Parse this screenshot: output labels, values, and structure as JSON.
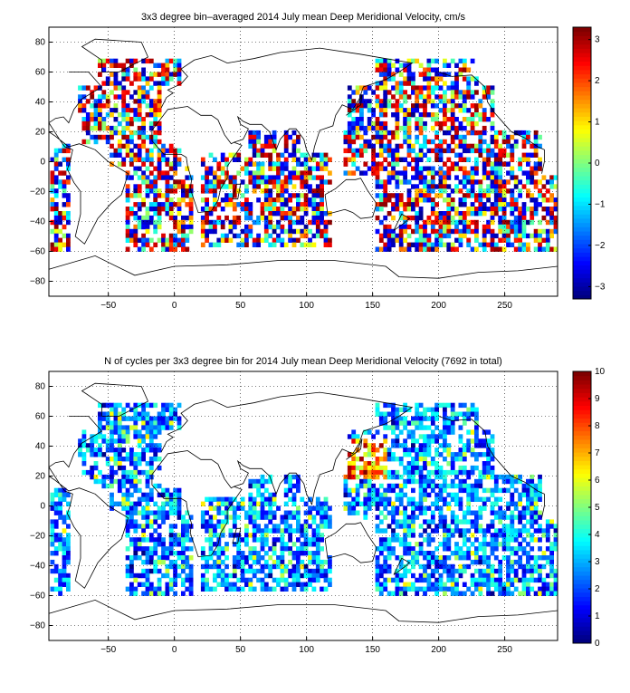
{
  "figures": [
    {
      "title": "3x3 degree bin–averaged 2014 July mean Deep Meridional Velocity, cm/s",
      "colorbar": {
        "ticks": [
          "3",
          "2",
          "1",
          "0",
          "−1",
          "−2",
          "−3"
        ],
        "min": -3.3,
        "max": 3.3,
        "colormap": "jet"
      }
    },
    {
      "title": "N of cycles per 3x3 degree bin for 2014 July mean Deep Meridional Velocity (7692 in total)",
      "colorbar": {
        "ticks": [
          "10",
          "9",
          "8",
          "7",
          "6",
          "5",
          "4",
          "3",
          "2",
          "1",
          "0"
        ],
        "min": 0,
        "max": 10,
        "colormap": "jet"
      }
    }
  ],
  "axes": {
    "x_ticks": [
      "−50",
      "0",
      "50",
      "100",
      "150",
      "200",
      "250"
    ],
    "y_ticks": [
      "80",
      "60",
      "40",
      "20",
      "0",
      "−20",
      "−40",
      "−60",
      "−80"
    ],
    "xlim": [
      -95,
      290
    ],
    "ylim": [
      -90,
      90
    ],
    "grid": "dotted"
  },
  "colors": {
    "colormap_stops": [
      "#00008f",
      "#0000ff",
      "#00ffff",
      "#ffff00",
      "#ff0000",
      "#800000"
    ]
  }
}
